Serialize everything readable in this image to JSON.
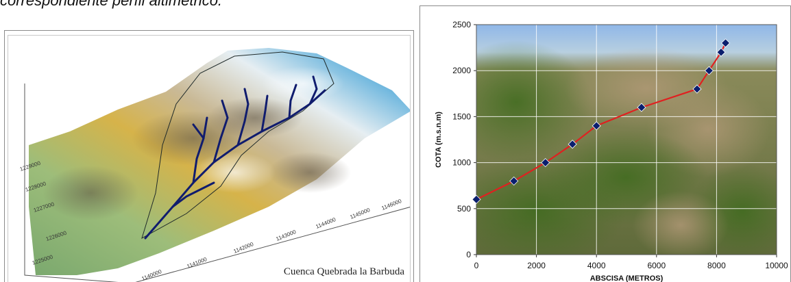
{
  "top_caption": "correspondiente perfil altimétrico.",
  "terrain_map": {
    "caption": "Cuenca Quebrada la Barbuda",
    "x_ticks": [
      "1140000",
      "1141000",
      "1142000",
      "1143000",
      "1144000",
      "1145000",
      "1146000"
    ],
    "y_ticks": [
      "1225000",
      "1226000",
      "1227000",
      "1228000",
      "1229000"
    ]
  },
  "chart_data": {
    "type": "line",
    "xlabel": "ABSCISA (METROS)",
    "ylabel": "COTA (m.s.n.m)",
    "xlim": [
      0,
      10000
    ],
    "ylim": [
      0,
      2500
    ],
    "x_ticks": [
      0,
      2000,
      4000,
      6000,
      8000,
      10000
    ],
    "y_ticks": [
      0,
      500,
      1000,
      1500,
      2000,
      2500
    ],
    "grid": true,
    "series": [
      {
        "x": [
          0,
          1250,
          2300,
          3200,
          4000,
          5500,
          7350,
          7750,
          8150,
          8300
        ],
        "y": [
          600,
          800,
          1000,
          1200,
          1400,
          1600,
          1800,
          2000,
          2200,
          2300
        ],
        "line_color": "#e02020",
        "marker_color": "#0b1f6e"
      }
    ]
  }
}
